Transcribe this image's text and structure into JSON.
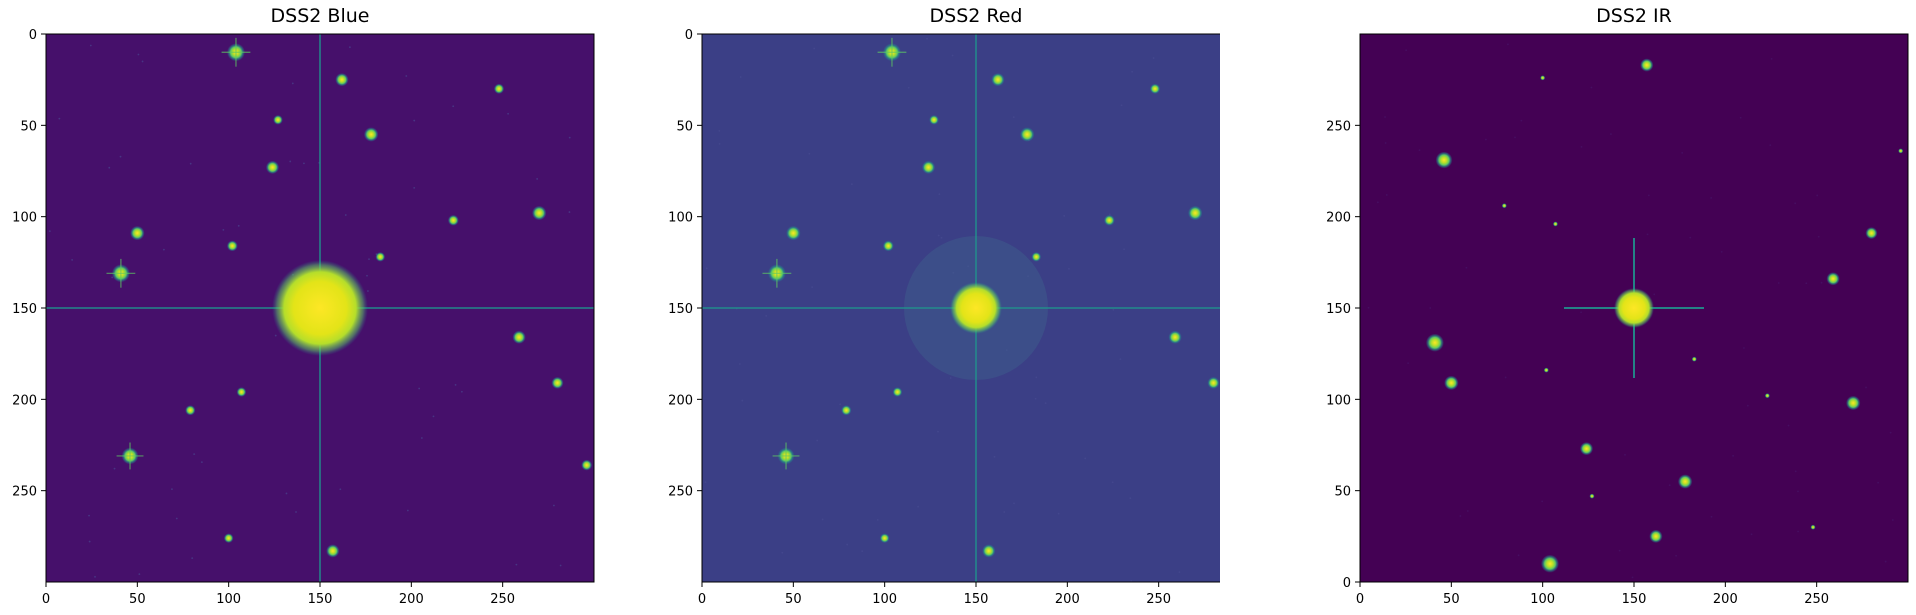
{
  "colors": {
    "viridis_dark": "#440154",
    "viridis_mid": "#3b528b",
    "viridis_teal": "#21918c",
    "viridis_green": "#5ec962",
    "viridis_yellow": "#fde725"
  },
  "panels": [
    {
      "title": "DSS2 Blue",
      "background": "#46106b",
      "halo": "large",
      "x_ticks": [
        "0",
        "50",
        "100",
        "150",
        "200",
        "250"
      ],
      "y_ticks": [
        "0",
        "50",
        "100",
        "150",
        "200",
        "250"
      ],
      "y_direction": "down"
    },
    {
      "title": "DSS2 Red",
      "background": "#3b3f86",
      "halo": "medium",
      "x_ticks": [
        "0",
        "50",
        "100",
        "150",
        "200",
        "250"
      ],
      "y_ticks": [
        "0",
        "50",
        "100",
        "150",
        "200",
        "250"
      ],
      "y_direction": "down"
    },
    {
      "title": "DSS2 IR",
      "background": "#440154",
      "halo": "small",
      "x_ticks": [
        "0",
        "50",
        "100",
        "150",
        "200",
        "250"
      ],
      "y_ticks": [
        "0",
        "50",
        "100",
        "150",
        "200",
        "250"
      ],
      "y_direction": "up"
    }
  ],
  "image_data": {
    "range": [
      0,
      300
    ],
    "stars": [
      {
        "x": 104,
        "y": 10,
        "mag": 1.0
      },
      {
        "x": 162,
        "y": 25,
        "mag": 0.6
      },
      {
        "x": 178,
        "y": 55,
        "mag": 0.7
      },
      {
        "x": 124,
        "y": 73,
        "mag": 0.6
      },
      {
        "x": 270,
        "y": 98,
        "mag": 0.7
      },
      {
        "x": 50,
        "y": 109,
        "mag": 0.7
      },
      {
        "x": 41,
        "y": 131,
        "mag": 1.0
      },
      {
        "x": 150,
        "y": 150,
        "mag": 3.0
      },
      {
        "x": 259,
        "y": 166,
        "mag": 0.6
      },
      {
        "x": 280,
        "y": 191,
        "mag": 0.5
      },
      {
        "x": 46,
        "y": 231,
        "mag": 0.9
      },
      {
        "x": 157,
        "y": 283,
        "mag": 0.6
      },
      {
        "x": 223,
        "y": 102,
        "mag": 0.4
      },
      {
        "x": 248,
        "y": 30,
        "mag": 0.35
      },
      {
        "x": 102,
        "y": 116,
        "mag": 0.4
      },
      {
        "x": 79,
        "y": 206,
        "mag": 0.35
      },
      {
        "x": 296,
        "y": 236,
        "mag": 0.4
      },
      {
        "x": 183,
        "y": 122,
        "mag": 0.3
      },
      {
        "x": 107,
        "y": 196,
        "mag": 0.3
      },
      {
        "x": 127,
        "y": 47,
        "mag": 0.3
      },
      {
        "x": 100,
        "y": 276,
        "mag": 0.3
      }
    ]
  }
}
